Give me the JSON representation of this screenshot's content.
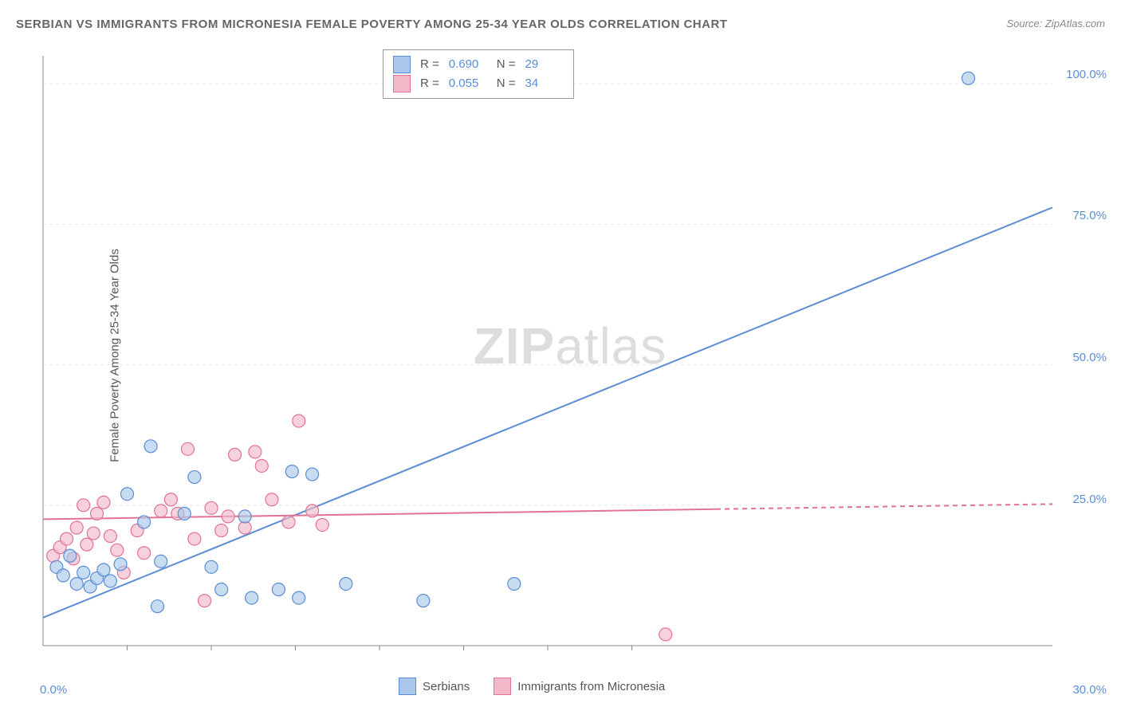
{
  "title": "SERBIAN VS IMMIGRANTS FROM MICRONESIA FEMALE POVERTY AMONG 25-34 YEAR OLDS CORRELATION CHART",
  "source": "Source: ZipAtlas.com",
  "ylabel": "Female Poverty Among 25-34 Year Olds",
  "watermark_a": "ZIP",
  "watermark_b": "atlas",
  "chart": {
    "type": "scatter-with-regression",
    "xlim": [
      0,
      30
    ],
    "ylim": [
      0,
      105
    ],
    "yticks": [
      25,
      50,
      75,
      100
    ],
    "ytick_labels": [
      "25.0%",
      "50.0%",
      "75.0%",
      "100.0%"
    ],
    "xticks_vals": [
      0,
      30
    ],
    "xtick_labels": [
      "0.0%",
      "30.0%"
    ],
    "minor_xticks": [
      2.5,
      5,
      7.5,
      10,
      12.5,
      15,
      17.5
    ],
    "grid_color": "#e8e8e8",
    "axis_color": "#888",
    "background_color": "#ffffff",
    "marker_radius": 8,
    "marker_stroke_width": 1.2,
    "line_width": 2,
    "series": [
      {
        "name": "Serbians",
        "color_fill": "#a9c7ea",
        "color_stroke": "#5b8dd6",
        "r_value": "0.690",
        "n_value": "29",
        "regression": {
          "x1": 0,
          "y1": 5,
          "x2": 30,
          "y2": 78,
          "dashed_after_x": null
        },
        "points": [
          [
            0.4,
            14
          ],
          [
            0.6,
            12.5
          ],
          [
            0.8,
            16
          ],
          [
            1.0,
            11
          ],
          [
            1.2,
            13
          ],
          [
            1.4,
            10.5
          ],
          [
            1.6,
            12
          ],
          [
            1.8,
            13.5
          ],
          [
            2.0,
            11.5
          ],
          [
            2.3,
            14.5
          ],
          [
            2.5,
            27
          ],
          [
            3.0,
            22
          ],
          [
            3.2,
            35.5
          ],
          [
            3.4,
            7
          ],
          [
            3.5,
            15
          ],
          [
            4.2,
            23.5
          ],
          [
            4.5,
            30
          ],
          [
            5.0,
            14
          ],
          [
            5.3,
            10
          ],
          [
            6.0,
            23
          ],
          [
            6.2,
            8.5
          ],
          [
            7.0,
            10
          ],
          [
            7.4,
            31
          ],
          [
            7.6,
            8.5
          ],
          [
            8.0,
            30.5
          ],
          [
            9.0,
            11
          ],
          [
            11.3,
            8
          ],
          [
            14.0,
            11
          ],
          [
            27.5,
            101
          ]
        ]
      },
      {
        "name": "Immigrants from Micronesia",
        "color_fill": "#f3b9c8",
        "color_stroke": "#e27396",
        "r_value": "0.055",
        "n_value": "34",
        "regression": {
          "x1": 0,
          "y1": 22.5,
          "x2": 30,
          "y2": 25.2,
          "dashed_after_x": 20
        },
        "points": [
          [
            0.3,
            16
          ],
          [
            0.5,
            17.5
          ],
          [
            0.7,
            19
          ],
          [
            0.9,
            15.5
          ],
          [
            1.0,
            21
          ],
          [
            1.2,
            25
          ],
          [
            1.3,
            18
          ],
          [
            1.5,
            20
          ],
          [
            1.6,
            23.5
          ],
          [
            1.8,
            25.5
          ],
          [
            2.0,
            19.5
          ],
          [
            2.2,
            17
          ],
          [
            2.4,
            13
          ],
          [
            2.8,
            20.5
          ],
          [
            3.0,
            16.5
          ],
          [
            3.5,
            24
          ],
          [
            3.8,
            26
          ],
          [
            4.0,
            23.5
          ],
          [
            4.3,
            35
          ],
          [
            4.5,
            19
          ],
          [
            4.8,
            8
          ],
          [
            5.0,
            24.5
          ],
          [
            5.3,
            20.5
          ],
          [
            5.5,
            23
          ],
          [
            5.7,
            34
          ],
          [
            6.0,
            21
          ],
          [
            6.3,
            34.5
          ],
          [
            6.5,
            32
          ],
          [
            6.8,
            26
          ],
          [
            7.3,
            22
          ],
          [
            7.6,
            40
          ],
          [
            8.0,
            24
          ],
          [
            8.3,
            21.5
          ],
          [
            18.5,
            2
          ]
        ]
      }
    ]
  },
  "stats_legend": {
    "R_label": "R =",
    "N_label": "N ="
  },
  "bottom_legend": {
    "items": [
      "Serbians",
      "Immigrants from Micronesia"
    ]
  }
}
